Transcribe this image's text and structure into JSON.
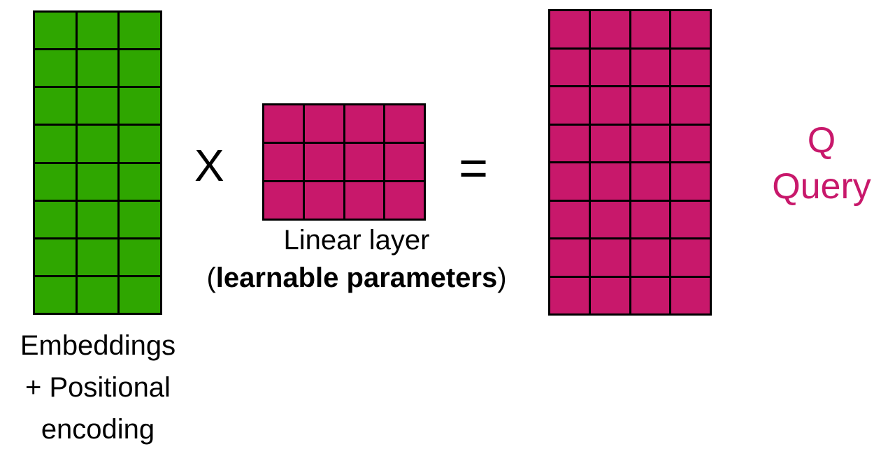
{
  "colors": {
    "embeddings": "#2fa600",
    "weights": "#c8186b",
    "query": "#c8186b",
    "query_text": "#c8186b"
  },
  "embeddings": {
    "rows": 8,
    "cols": 3,
    "label_lines": [
      "Embeddings",
      "+ Positional",
      "encoding"
    ]
  },
  "operator_times": "X",
  "linear_layer": {
    "rows": 3,
    "cols": 4,
    "label_line1": "Linear layer",
    "label_open": "(",
    "label_bold": "learnable parameters",
    "label_close": ")"
  },
  "operator_equals": "=",
  "query": {
    "rows": 8,
    "cols": 4,
    "symbol": "Q",
    "name": "Query"
  }
}
